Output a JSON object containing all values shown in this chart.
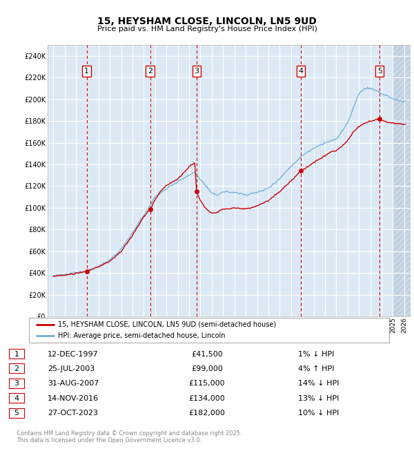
{
  "title": "15, HEYSHAM CLOSE, LINCOLN, LN5 9UD",
  "subtitle": "Price paid vs. HM Land Registry's House Price Index (HPI)",
  "ylim": [
    0,
    250000
  ],
  "xlim_start": 1994.5,
  "xlim_end": 2026.5,
  "fig_bg_color": "#ffffff",
  "plot_bg_color": "#dce9f5",
  "grid_color": "#ffffff",
  "hpi_line_color": "#6baed6",
  "price_line_color": "#cc0000",
  "sale_marker_color": "#cc0000",
  "sale_points": [
    {
      "date_year": 1997.95,
      "price": 41500,
      "label": "1"
    },
    {
      "date_year": 2003.56,
      "price": 99000,
      "label": "2"
    },
    {
      "date_year": 2007.66,
      "price": 115000,
      "label": "3"
    },
    {
      "date_year": 2016.87,
      "price": 134000,
      "label": "4"
    },
    {
      "date_year": 2023.83,
      "price": 182000,
      "label": "5"
    }
  ],
  "legend_entries": [
    "15, HEYSHAM CLOSE, LINCOLN, LN5 9UD (semi-detached house)",
    "HPI: Average price, semi-detached house, Lincoln"
  ],
  "table_rows": [
    {
      "num": "1",
      "date": "12-DEC-1997",
      "price": "£41,500",
      "hpi": "1% ↓ HPI"
    },
    {
      "num": "2",
      "date": "25-JUL-2003",
      "price": "£99,000",
      "hpi": "4% ↑ HPI"
    },
    {
      "num": "3",
      "date": "31-AUG-2007",
      "price": "£115,000",
      "hpi": "14% ↓ HPI"
    },
    {
      "num": "4",
      "date": "14-NOV-2016",
      "price": "£134,000",
      "hpi": "13% ↓ HPI"
    },
    {
      "num": "5",
      "date": "27-OCT-2023",
      "price": "£182,000",
      "hpi": "10% ↓ HPI"
    }
  ],
  "footer": "Contains HM Land Registry data © Crown copyright and database right 2025.\nThis data is licensed under the Open Government Licence v3.0.",
  "dashed_line_color": "#cc0000",
  "label_box_color": "#ffffff",
  "label_box_edge": "#cc0000",
  "hatch_start": 2025.0
}
